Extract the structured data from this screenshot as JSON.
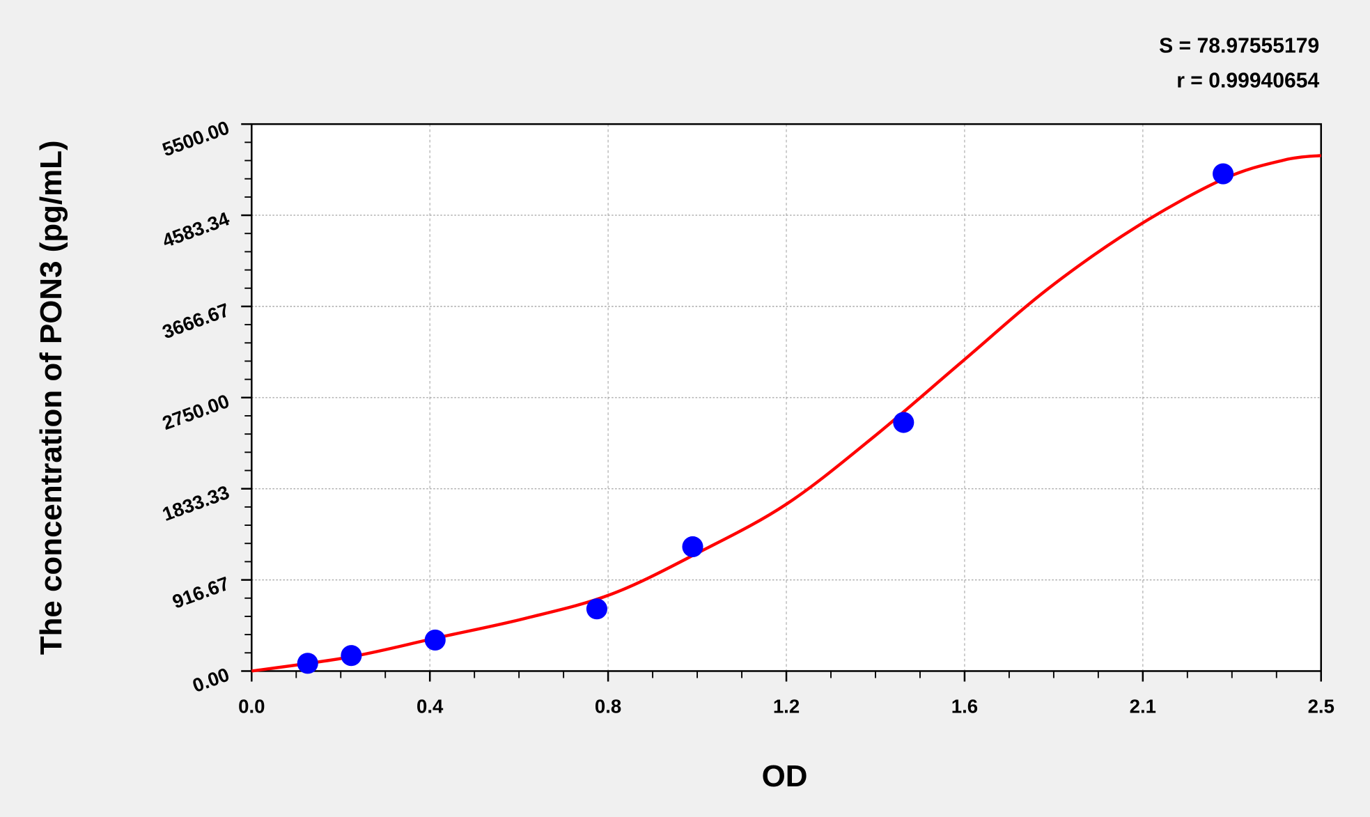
{
  "chart_data": {
    "type": "scatter",
    "title": "",
    "xlabel": "OD",
    "ylabel": "The concentration of PON3 (pg/mL)",
    "xlim": [
      0,
      2.5
    ],
    "ylim": [
      0,
      5500
    ],
    "x_tick_labels": [
      "0.0",
      "0.4",
      "0.8",
      "1.2",
      "1.6",
      "2.1",
      "2.5"
    ],
    "y_tick_labels": [
      "0.00",
      "916.67",
      "1833.33",
      "2750.00",
      "3666.67",
      "4583.34",
      "5500.00"
    ],
    "grid": true,
    "annotations": [
      "S = 78.97555179",
      "r = 0.99940654"
    ],
    "series": [
      {
        "type": "scatter",
        "color": "#0000ff",
        "points": [
          {
            "x": 0.131,
            "y": 78
          },
          {
            "x": 0.233,
            "y": 156
          },
          {
            "x": 0.429,
            "y": 312
          },
          {
            "x": 0.807,
            "y": 625
          },
          {
            "x": 1.031,
            "y": 1250
          },
          {
            "x": 1.524,
            "y": 2500
          },
          {
            "x": 2.271,
            "y": 5000
          }
        ]
      },
      {
        "type": "line",
        "color": "#ff0000",
        "points": [
          {
            "x": 0,
            "y": 0
          },
          {
            "x": 0.229,
            "y": 141
          },
          {
            "x": 0.433,
            "y": 334
          },
          {
            "x": 0.637,
            "y": 527
          },
          {
            "x": 0.841,
            "y": 773
          },
          {
            "x": 1.046,
            "y": 1195
          },
          {
            "x": 1.25,
            "y": 1678
          },
          {
            "x": 1.454,
            "y": 2354
          },
          {
            "x": 1.658,
            "y": 3101
          },
          {
            "x": 1.863,
            "y": 3848
          },
          {
            "x": 2.067,
            "y": 4463
          },
          {
            "x": 2.271,
            "y": 4946
          },
          {
            "x": 2.414,
            "y": 5139
          },
          {
            "x": 2.5,
            "y": 5184
          }
        ]
      }
    ]
  }
}
